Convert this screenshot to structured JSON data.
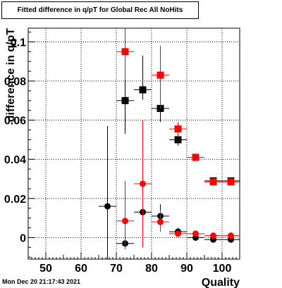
{
  "title": "Fitted difference in q/pT for Global Rec All NoHits",
  "date_stamp": "Mon Dec 20 21:17:43 2021",
  "chart_data": {
    "type": "scatter",
    "title": "Fitted difference in q/pT for Global Rec All NoHits",
    "xlabel": "Quality",
    "ylabel": "difference in q/pT",
    "xlim": [
      45,
      105
    ],
    "ylim": [
      -0.011,
      0.107
    ],
    "grid": true,
    "x_ticks": [
      50,
      60,
      70,
      80,
      90,
      100
    ],
    "y_ticks": [
      0,
      0.02,
      0.04,
      0.06,
      0.08,
      0.1
    ],
    "x_tick_labels": [
      "50",
      "60",
      "70",
      "80",
      "90",
      "100"
    ],
    "y_tick_labels": [
      "0",
      "0.02",
      "0.04",
      "0.06",
      "0.08",
      "0.1"
    ],
    "series": [
      {
        "marker": "square",
        "color": "#000000",
        "points": [
          {
            "x": 72.5,
            "y": 0.07,
            "xerr": 2.5,
            "ylo": 0.053,
            "yhi": 0.107
          },
          {
            "x": 77.5,
            "y": 0.0755,
            "xerr": 2.5,
            "ylo": 0.0705,
            "yhi": 0.093
          },
          {
            "x": 82.5,
            "y": 0.066,
            "xerr": 2.5,
            "ylo": 0.059,
            "yhi": 0.073
          },
          {
            "x": 87.5,
            "y": 0.05,
            "xerr": 2.5,
            "ylo": 0.047,
            "yhi": 0.053
          },
          {
            "x": 92.5,
            "y": 0.041,
            "xerr": 2.5,
            "ylo": 0.04,
            "yhi": 0.042
          },
          {
            "x": 97.5,
            "y": 0.029,
            "xerr": 2.5,
            "ylo": 0.028,
            "yhi": 0.03
          },
          {
            "x": 102.5,
            "y": 0.029,
            "xerr": 2.5,
            "ylo": 0.028,
            "yhi": 0.03
          }
        ]
      },
      {
        "marker": "square",
        "color": "#ff0000",
        "points": [
          {
            "x": 72.5,
            "y": 0.095,
            "xerr": 2.5,
            "ylo": 0.08,
            "yhi": 0.107
          },
          {
            "x": 82.5,
            "y": 0.083,
            "xerr": 2.5,
            "ylo": 0.066,
            "yhi": 0.098
          },
          {
            "x": 87.5,
            "y": 0.0555,
            "xerr": 2.5,
            "ylo": 0.052,
            "yhi": 0.059
          },
          {
            "x": 92.5,
            "y": 0.041,
            "xerr": 2.5,
            "ylo": 0.04,
            "yhi": 0.042
          },
          {
            "x": 97.5,
            "y": 0.0285,
            "xerr": 2.5,
            "ylo": 0.0275,
            "yhi": 0.0295
          },
          {
            "x": 102.5,
            "y": 0.0285,
            "xerr": 2.5,
            "ylo": 0.0275,
            "yhi": 0.0295
          }
        ]
      },
      {
        "marker": "circle",
        "color": "#000000",
        "points": [
          {
            "x": 67.5,
            "y": 0.016,
            "xerr": 2.5,
            "ylo": -0.011,
            "yhi": 0.057
          },
          {
            "x": 72.5,
            "y": -0.003,
            "xerr": 2.5,
            "ylo": -0.006,
            "yhi": 0.0
          },
          {
            "x": 77.5,
            "y": 0.013,
            "xerr": 2.5,
            "ylo": 0.004,
            "yhi": 0.022
          },
          {
            "x": 82.5,
            "y": 0.011,
            "xerr": 2.5,
            "ylo": 0.006,
            "yhi": 0.017
          },
          {
            "x": 87.5,
            "y": 0.003,
            "xerr": 2.5,
            "ylo": 0.001,
            "yhi": 0.005
          },
          {
            "x": 92.5,
            "y": 0.0,
            "xerr": 2.5,
            "ylo": -0.001,
            "yhi": 0.001
          },
          {
            "x": 97.5,
            "y": -0.001,
            "xerr": 2.5,
            "ylo": -0.0015,
            "yhi": -0.0005
          },
          {
            "x": 102.5,
            "y": -0.001,
            "xerr": 2.5,
            "ylo": -0.0015,
            "yhi": -0.0005
          }
        ]
      },
      {
        "marker": "circle",
        "color": "#ff0000",
        "points": [
          {
            "x": 72.5,
            "y": 0.0085,
            "xerr": 2.5,
            "ylo": -0.006,
            "yhi": 0.029
          },
          {
            "x": 77.5,
            "y": 0.0275,
            "xerr": 2.5,
            "ylo": -0.005,
            "yhi": 0.06
          },
          {
            "x": 82.5,
            "y": 0.008,
            "xerr": 2.5,
            "ylo": 0.003,
            "yhi": 0.014
          },
          {
            "x": 87.5,
            "y": 0.002,
            "xerr": 2.5,
            "ylo": 0.0005,
            "yhi": 0.0035
          },
          {
            "x": 92.5,
            "y": 0.002,
            "xerr": 2.5,
            "ylo": 0.001,
            "yhi": 0.003
          },
          {
            "x": 97.5,
            "y": 0.001,
            "xerr": 2.5,
            "ylo": 0.0005,
            "yhi": 0.0015
          },
          {
            "x": 102.5,
            "y": 0.001,
            "xerr": 2.5,
            "ylo": 0.0005,
            "yhi": 0.0015
          }
        ]
      }
    ]
  }
}
